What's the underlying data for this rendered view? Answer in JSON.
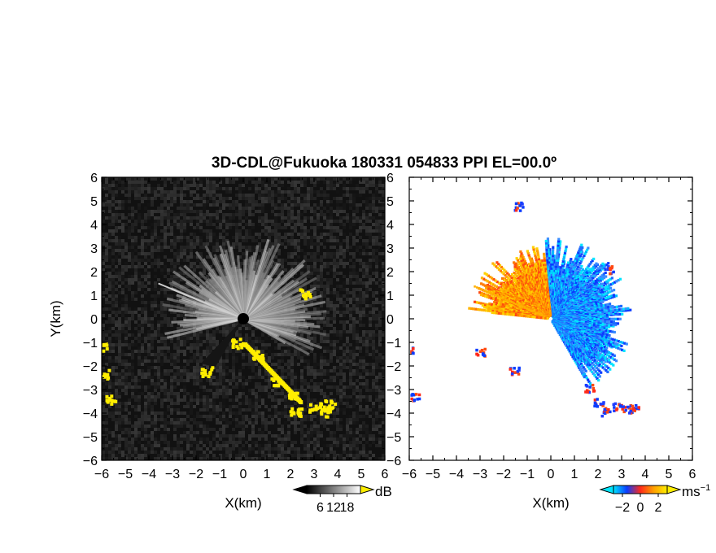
{
  "title": "3D-CDL@Fukuoka 180331 054833 PPI EL=00.0º",
  "chart_data": [
    {
      "type": "heatmap",
      "panel": "left",
      "quantity": "backscatter intensity (SNR)",
      "xlabel": "X(km)",
      "ylabel": "Y(km)",
      "xlim": [
        -6,
        6
      ],
      "ylim": [
        -6,
        6
      ],
      "xticks": [
        -6,
        -5,
        -4,
        -3,
        -2,
        -1,
        0,
        1,
        2,
        3,
        4,
        5,
        6
      ],
      "yticks": [
        -6,
        -5,
        -4,
        -3,
        -2,
        -1,
        0,
        1,
        2,
        3,
        4,
        5,
        6
      ],
      "xtick_labels": [
        "−6",
        "−5",
        "−4",
        "−3",
        "−2",
        "−1",
        "0",
        "1",
        "2",
        "3",
        "4",
        "5",
        "6"
      ],
      "ytick_labels": [
        "−6",
        "−5",
        "−4",
        "−3",
        "−2",
        "−1",
        "0",
        "1",
        "2",
        "3",
        "4",
        "5",
        "6"
      ],
      "background_color": "#111111",
      "hard_target_color": "#ffee00",
      "colorbar": {
        "unit": "dB",
        "ticks": [
          6,
          12,
          18
        ],
        "tick_labels": [
          "6",
          "12",
          "18"
        ],
        "range": [
          0,
          24
        ],
        "colors": [
          "#000000",
          "#ffffff"
        ],
        "extend_low_color": "#000000",
        "extend_high_color": "#ffee00"
      },
      "features": {
        "bright_sector_angles_deg": [
          -165,
          95
        ],
        "bright_sector_range_km": 3.6,
        "hard_target_points_km": [
          [
            -6,
            -1.2
          ],
          [
            -5.9,
            -2.3
          ],
          [
            -5.7,
            -3.4
          ],
          [
            -0.3,
            -1.0
          ],
          [
            0.6,
            -1.5
          ],
          [
            1.4,
            -2.6
          ],
          [
            2.1,
            -3.2
          ],
          [
            2.2,
            -3.9
          ],
          [
            3,
            -3.7
          ],
          [
            3.4,
            -3.9
          ],
          [
            3.6,
            -3.6
          ],
          [
            -1.6,
            -2.2
          ],
          [
            2.6,
            1.1
          ]
        ]
      }
    },
    {
      "type": "heatmap",
      "panel": "right",
      "quantity": "radial velocity",
      "xlabel": "X(km)",
      "ylabel": "",
      "xlim": [
        -6,
        6
      ],
      "ylim": [
        -6,
        6
      ],
      "xticks": [
        -6,
        -5,
        -4,
        -3,
        -2,
        -1,
        0,
        1,
        2,
        3,
        4,
        5,
        6
      ],
      "yticks": [
        -6,
        -5,
        -4,
        -3,
        -2,
        -1,
        0,
        1,
        2,
        3,
        4,
        5,
        6
      ],
      "xtick_labels": [
        "−6",
        "−5",
        "−4",
        "−3",
        "−2",
        "−1",
        "0",
        "1",
        "2",
        "3",
        "4",
        "5",
        "6"
      ],
      "ytick_labels": [
        "−6",
        "−5",
        "−4",
        "−3",
        "−2",
        "−1",
        "0",
        "1",
        "2",
        "3",
        "4",
        "5",
        "6"
      ],
      "background_color": "#ffffff",
      "colorbar": {
        "unit": "ms",
        "unit_exponent": "−1",
        "ticks": [
          -2,
          0,
          2
        ],
        "tick_labels": [
          "−2",
          "0",
          "2"
        ],
        "range": [
          -3,
          3
        ],
        "colors": [
          "#00e5ff",
          "#0a3cff",
          "#ff2a1a",
          "#ffa000",
          "#ffee00"
        ],
        "extend_low_color": "#00e5ff",
        "extend_high_color": "#ffee00"
      },
      "features": {
        "approaching_sector_angles_deg": [
          95,
          175
        ],
        "receding_sector_angles_deg": [
          -60,
          95
        ],
        "echo_range_km": 3.5,
        "rain_echo_points_km": [
          [
            -6,
            -1.3
          ],
          [
            -5.8,
            -3.3
          ],
          [
            1.6,
            -2.9
          ],
          [
            2.0,
            -3.5
          ],
          [
            2.3,
            -3.9
          ],
          [
            2.8,
            -3.7
          ],
          [
            3.2,
            -3.8
          ],
          [
            3.5,
            -3.7
          ],
          [
            -1.4,
            4.8
          ],
          [
            -1.6,
            -2.2
          ],
          [
            -3.0,
            -1.4
          ],
          [
            2.4,
            2.1
          ]
        ]
      }
    }
  ]
}
